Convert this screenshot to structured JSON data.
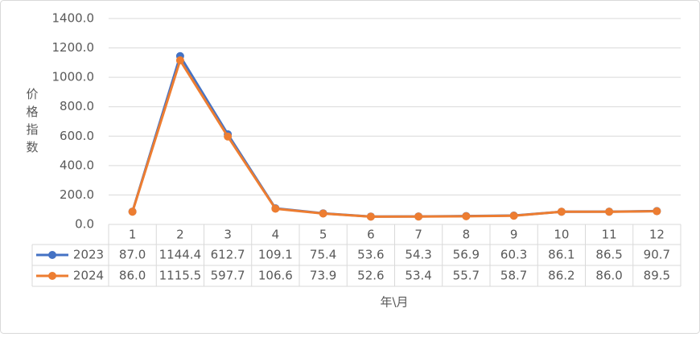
{
  "chart_data": {
    "type": "line",
    "y_label": "价格指数",
    "x_label": "年\\月",
    "categories": [
      "1",
      "2",
      "3",
      "4",
      "5",
      "6",
      "7",
      "8",
      "9",
      "10",
      "11",
      "12"
    ],
    "series": [
      {
        "name": "2023",
        "color": "#4472c4",
        "values": [
          87.0,
          1144.4,
          612.7,
          109.1,
          75.4,
          53.6,
          54.3,
          56.9,
          60.3,
          86.1,
          86.5,
          90.7
        ],
        "value_labels": [
          "87.0",
          "1144.4",
          "612.7",
          "109.1",
          "75.4",
          "53.6",
          "54.3",
          "56.9",
          "60.3",
          "86.1",
          "86.5",
          "90.7"
        ]
      },
      {
        "name": "2024",
        "color": "#ed7d31",
        "values": [
          86.0,
          1115.5,
          597.7,
          106.6,
          73.9,
          52.6,
          53.4,
          55.7,
          58.7,
          86.2,
          86.0,
          89.5
        ],
        "value_labels": [
          "86.0",
          "1115.5",
          "597.7",
          "106.6",
          "73.9",
          "52.6",
          "53.4",
          "55.7",
          "58.7",
          "86.2",
          "86.0",
          "89.5"
        ]
      }
    ],
    "ylim": [
      0,
      1400
    ],
    "yticks": [
      {
        "value": 0,
        "label": "0.0"
      },
      {
        "value": 200,
        "label": "200.0"
      },
      {
        "value": 400,
        "label": "400.0"
      },
      {
        "value": 600,
        "label": "600.0"
      },
      {
        "value": 800,
        "label": "800.0"
      },
      {
        "value": 1000,
        "label": "1000.0"
      },
      {
        "value": 1200,
        "label": "1200.0"
      },
      {
        "value": 1400,
        "label": "1400.0"
      }
    ],
    "grid": true
  }
}
